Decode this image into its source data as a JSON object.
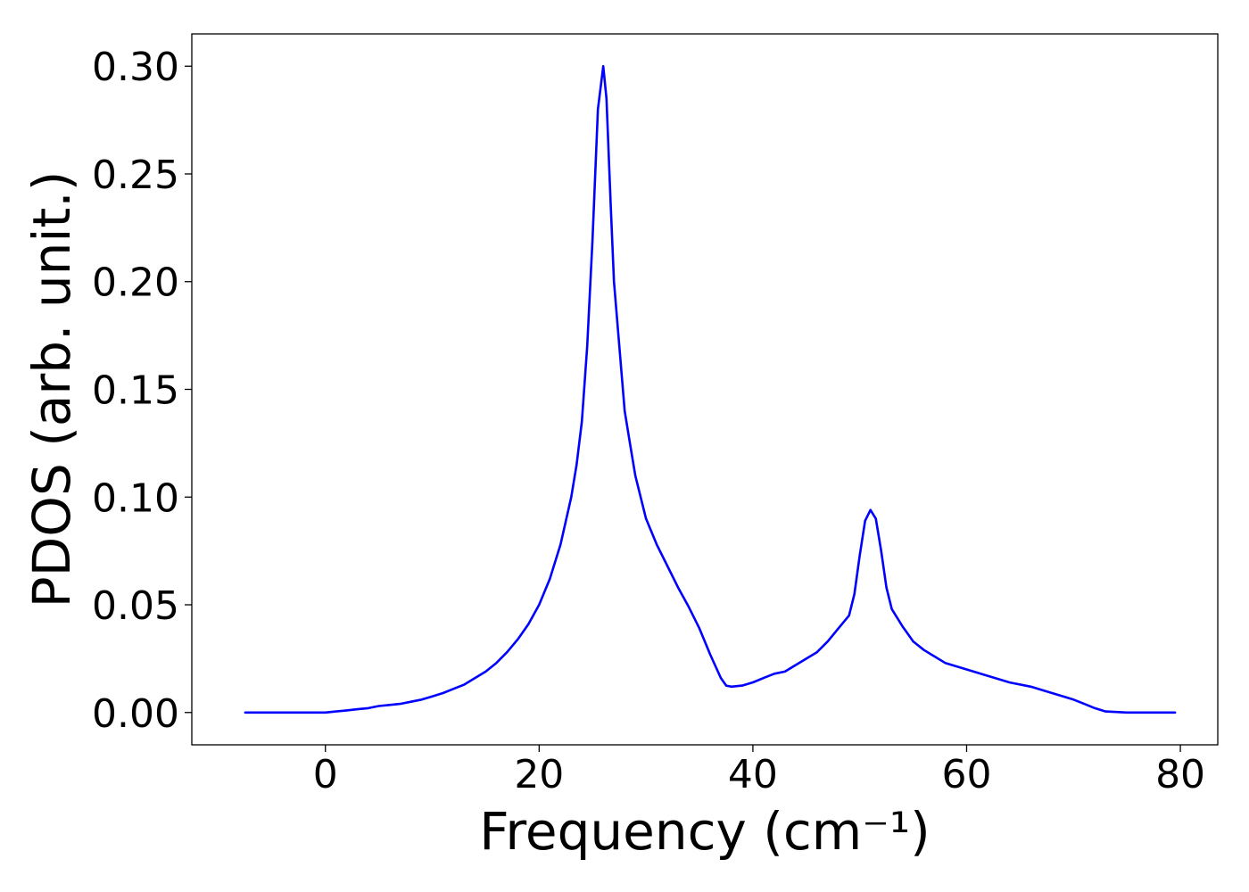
{
  "chart_data": {
    "type": "line",
    "xlabel": "Frequency (cm⁻¹)",
    "ylabel": "PDOS (arb. unit.)",
    "xlim": [
      -12.5,
      83.5
    ],
    "ylim": [
      -0.015,
      0.315
    ],
    "xticks": [
      0,
      20,
      40,
      60,
      80
    ],
    "yticks": [
      0.0,
      0.05,
      0.1,
      0.15,
      0.2,
      0.25,
      0.3
    ],
    "xtick_labels": [
      "0",
      "20",
      "40",
      "60",
      "80"
    ],
    "ytick_labels": [
      "0.00",
      "0.05",
      "0.10",
      "0.15",
      "0.20",
      "0.25",
      "0.30"
    ],
    "grid": false,
    "series": [
      {
        "color": "#0000ff",
        "x": [
          -7.5,
          -4,
          0,
          1,
          2,
          3,
          4,
          5,
          6,
          7,
          8,
          9,
          10,
          11,
          12,
          13,
          14,
          15,
          16,
          17,
          18,
          19,
          20,
          21,
          22,
          23,
          23.5,
          24,
          24.5,
          25,
          25.5,
          26,
          26.3,
          26.7,
          27,
          27.5,
          28,
          28.5,
          29,
          29.5,
          30,
          31,
          32,
          33,
          34,
          35,
          36,
          37,
          37.5,
          38,
          39,
          40,
          41,
          42,
          43,
          44,
          45,
          46,
          47,
          48,
          48.5,
          49,
          49.5,
          50,
          50.5,
          51,
          51.5,
          52,
          52.5,
          53,
          54,
          55,
          56,
          57,
          58,
          60,
          62,
          64,
          66,
          68,
          70,
          71,
          72,
          73,
          75,
          79.5
        ],
        "y": [
          0.0,
          0.0,
          0.0,
          0.0005,
          0.001,
          0.0015,
          0.002,
          0.003,
          0.0035,
          0.004,
          0.005,
          0.006,
          0.0075,
          0.009,
          0.011,
          0.013,
          0.016,
          0.019,
          0.023,
          0.028,
          0.034,
          0.041,
          0.05,
          0.062,
          0.078,
          0.1,
          0.115,
          0.135,
          0.17,
          0.22,
          0.28,
          0.3,
          0.285,
          0.235,
          0.2,
          0.17,
          0.14,
          0.125,
          0.11,
          0.1,
          0.09,
          0.078,
          0.068,
          0.058,
          0.049,
          0.039,
          0.027,
          0.016,
          0.0125,
          0.012,
          0.0125,
          0.014,
          0.016,
          0.018,
          0.019,
          0.022,
          0.025,
          0.028,
          0.033,
          0.039,
          0.042,
          0.045,
          0.055,
          0.073,
          0.089,
          0.094,
          0.09,
          0.075,
          0.058,
          0.048,
          0.04,
          0.033,
          0.029,
          0.026,
          0.023,
          0.02,
          0.017,
          0.014,
          0.012,
          0.009,
          0.006,
          0.004,
          0.002,
          0.0005,
          0.0,
          0.0
        ]
      }
    ]
  }
}
